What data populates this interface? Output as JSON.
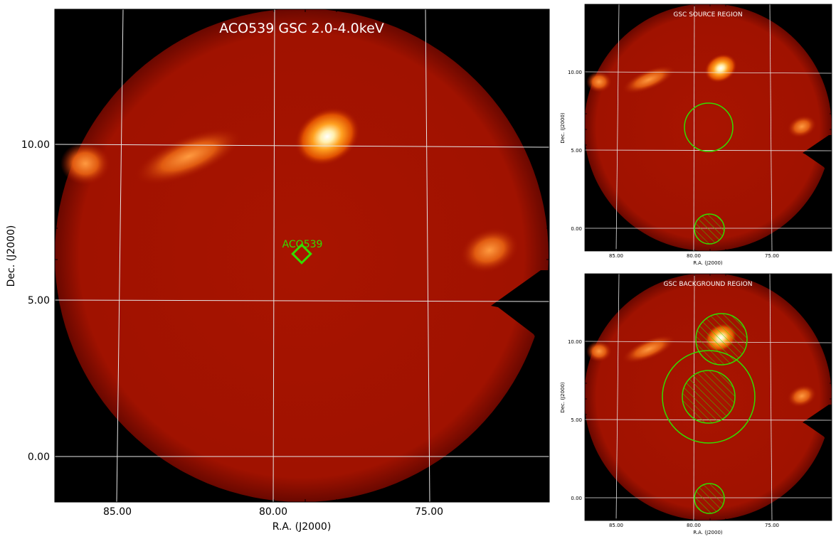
{
  "colors": {
    "background": "#000000",
    "disk": "#a81400",
    "grid": "#e6e6e6",
    "marker": "#33dd00"
  },
  "chart_data": [
    {
      "type": "heatmap",
      "title": "ACO539 GSC 2.0-4.0keV",
      "xlabel": "R.A. (J2000)",
      "ylabel": "Dec. (J2000)",
      "xlim": [
        88.2,
        72.2
      ],
      "ylim": [
        -1.5,
        14.5
      ],
      "x_ticks": [
        "85.00",
        "80.00",
        "75.00"
      ],
      "y_ticks": [
        "0.00",
        "5.00",
        "10.00"
      ],
      "grid": true,
      "annotations": [
        {
          "label": "ACO539",
          "ra": 79.1,
          "dec": 6.5,
          "marker": "diamond"
        }
      ],
      "bright_sources": [
        {
          "ra": 78.6,
          "dec": 10.4,
          "intensity": "high"
        },
        {
          "ra": 83.5,
          "dec": 9.7,
          "intensity": "medium"
        },
        {
          "ra": 86.7,
          "dec": 9.3,
          "intensity": "medium"
        },
        {
          "ra": 73.6,
          "dec": 6.6,
          "intensity": "medium"
        }
      ]
    },
    {
      "type": "heatmap",
      "title": "GSC SOURCE REGION",
      "xlabel": "R.A. (J2000)",
      "ylabel": "Dec. (J2000)",
      "x_ticks": [
        "85.00",
        "80.00",
        "75.00"
      ],
      "y_ticks": [
        "0.00",
        "5.00",
        "10.00"
      ],
      "regions": [
        {
          "kind": "source",
          "ra": 79.1,
          "dec": 6.5,
          "radius_deg": 1.5
        },
        {
          "kind": "excluded",
          "ra": 79.1,
          "dec": -0.1,
          "radius_deg": 1.0
        }
      ]
    },
    {
      "type": "heatmap",
      "title": "GSC BACKGROUND REGION",
      "xlabel": "R.A. (J2000)",
      "ylabel": "Dec. (J2000)",
      "x_ticks": [
        "85.00",
        "80.00",
        "75.00"
      ],
      "y_ticks": [
        "0.00",
        "5.00",
        "10.00"
      ],
      "regions": [
        {
          "kind": "background-outer",
          "ra": 79.1,
          "dec": 6.5,
          "radius_deg": 3.0
        },
        {
          "kind": "excluded",
          "ra": 79.1,
          "dec": 6.5,
          "radius_deg": 1.7
        },
        {
          "kind": "excluded",
          "ra": 78.6,
          "dec": 10.1,
          "radius_deg": 1.6
        },
        {
          "kind": "excluded",
          "ra": 79.1,
          "dec": -0.1,
          "radius_deg": 1.0
        }
      ]
    }
  ]
}
